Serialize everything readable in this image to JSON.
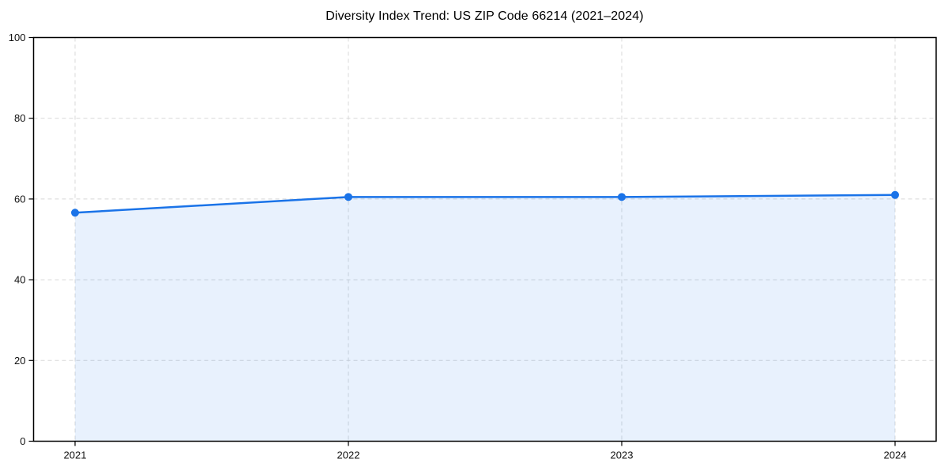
{
  "chart_data": {
    "type": "line",
    "title": "Diversity Index Trend: US ZIP Code 66214 (2021–2024)",
    "categories": [
      "2021",
      "2022",
      "2023",
      "2024"
    ],
    "series": [
      {
        "name": "Diversity Index",
        "values": [
          56.6,
          60.5,
          60.5,
          61.0
        ]
      }
    ],
    "xlabel": "",
    "ylabel": "",
    "ylim": [
      0,
      100
    ],
    "yticks": [
      0,
      20,
      40,
      60,
      80,
      100
    ],
    "grid": true,
    "grid_style": "dashed",
    "legend_position": "none",
    "area_filled_to_zero": true,
    "markers": "circle",
    "colors": {
      "line": "#1a73e8",
      "marker": "#1a73e8",
      "area_fill": "#1a73e8",
      "area_fill_opacity": 0.1,
      "grid": "#d8d8d8",
      "axis": "#000000",
      "tick_text": "#111111",
      "background": "#ffffff"
    }
  }
}
